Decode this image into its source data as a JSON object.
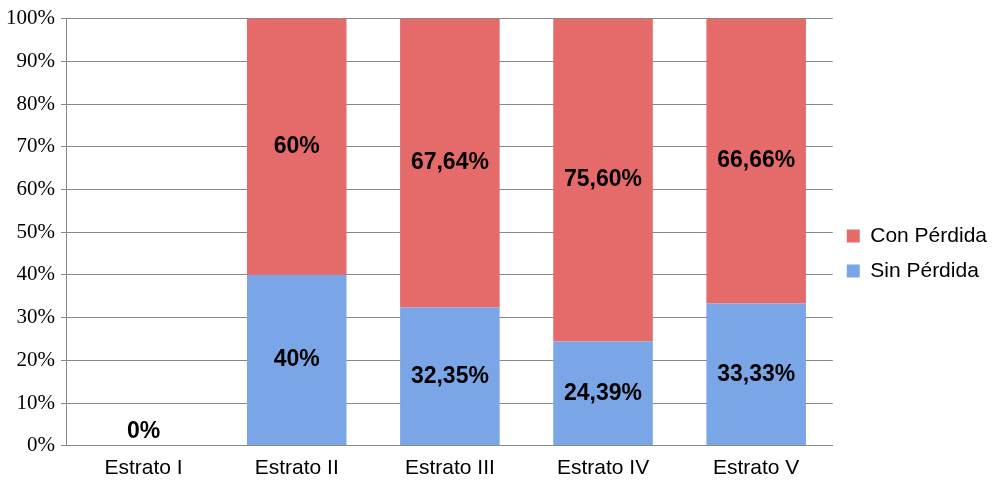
{
  "chart_data": {
    "type": "bar",
    "stacked": true,
    "categories": [
      "Estrato I",
      "Estrato II",
      "Estrato III",
      "Estrato IV",
      "Estrato V"
    ],
    "series": [
      {
        "name": "Sin Pérdida",
        "color": "#7aa6e8",
        "values": [
          0,
          40,
          32.35,
          24.39,
          33.33
        ],
        "value_labels": [
          "0%",
          "40%",
          "32,35%",
          "24,39%",
          "33,33%"
        ]
      },
      {
        "name": "Con Pérdida",
        "color": "#e56a6a",
        "values": [
          0,
          60,
          67.64,
          75.6,
          66.66
        ],
        "value_labels": [
          null,
          "60%",
          "67,64%",
          "75,60%",
          "66,66%"
        ]
      }
    ],
    "ylim": [
      0,
      100
    ],
    "yticks": [
      {
        "value": 0,
        "label": "0%"
      },
      {
        "value": 10,
        "label": "10%"
      },
      {
        "value": 20,
        "label": "20%"
      },
      {
        "value": 30,
        "label": "30%"
      },
      {
        "value": 40,
        "label": "40%"
      },
      {
        "value": 50,
        "label": "50%"
      },
      {
        "value": 60,
        "label": "60%"
      },
      {
        "value": 70,
        "label": "70%"
      },
      {
        "value": 80,
        "label": "80%"
      },
      {
        "value": 90,
        "label": "90%"
      },
      {
        "value": 100,
        "label": "100%"
      }
    ],
    "grid": "y",
    "legend": "right"
  }
}
